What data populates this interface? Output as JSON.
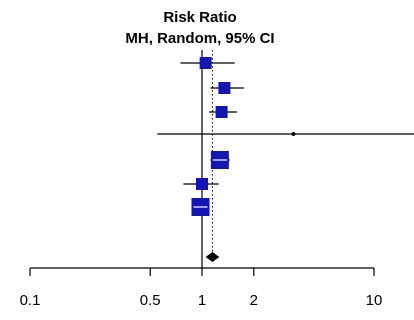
{
  "chart_data": {
    "type": "forest",
    "title": "Risk Ratio",
    "subtitle": "MH, Random, 95% CI",
    "x_scale": "log",
    "x_range": [
      0.1,
      10
    ],
    "x_ticks": [
      {
        "value": 0.1,
        "label": "0.1"
      },
      {
        "value": 0.5,
        "label": "0.5"
      },
      {
        "value": 1,
        "label": "1"
      },
      {
        "value": 2,
        "label": "2"
      },
      {
        "value": 10,
        "label": "10"
      }
    ],
    "studies": [
      {
        "rr": 1.05,
        "ci_low": 0.75,
        "ci_high": 1.55,
        "weight": "medium"
      },
      {
        "rr": 1.35,
        "ci_low": 1.12,
        "ci_high": 1.75,
        "weight": "medium"
      },
      {
        "rr": 1.3,
        "ci_low": 1.1,
        "ci_high": 1.6,
        "weight": "medium"
      },
      {
        "rr": 3.4,
        "ci_low": 0.55,
        "ci_high": 10,
        "weight": "tiny",
        "ci_high_truncated": true
      },
      {
        "rr": 1.27,
        "ci_low": 1.12,
        "ci_high": 1.45,
        "weight": "large"
      },
      {
        "rr": 1.0,
        "ci_low": 0.78,
        "ci_high": 1.25,
        "weight": "medium"
      },
      {
        "rr": 0.98,
        "ci_low": 0.9,
        "ci_high": 1.08,
        "weight": "large"
      }
    ],
    "pooled": {
      "rr": 1.15,
      "ci_low": 1.05,
      "ci_high": 1.26
    },
    "reference_line": 1,
    "pooled_line": "dotted",
    "colors": {
      "study_box": "#1515b4",
      "ci_line": "#000000",
      "pooled_diamond": "#000000",
      "axis": "#000000"
    },
    "grid": false
  }
}
